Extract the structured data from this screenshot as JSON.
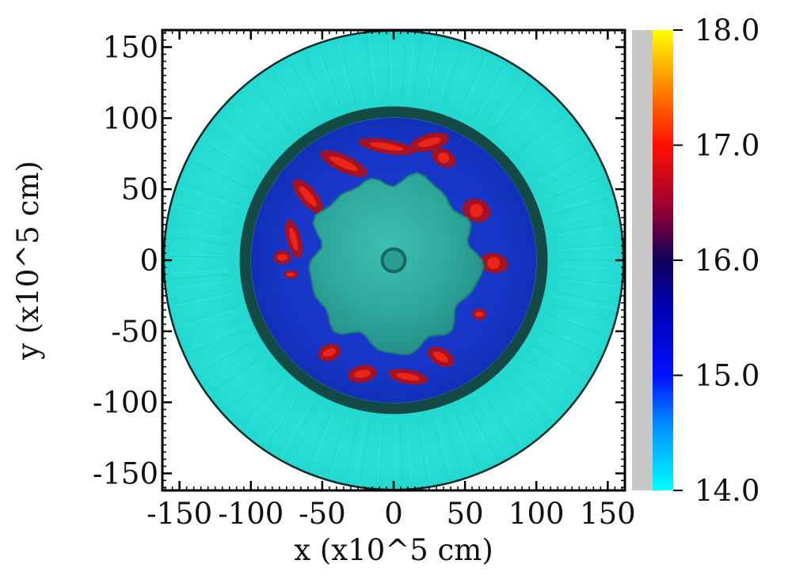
{
  "chart_data": {
    "type": "heatmap",
    "title": "",
    "xlabel": "x (x10^5 cm)",
    "ylabel": "y (x10^5 cm)",
    "xlim": [
      -162,
      162
    ],
    "ylim": [
      -162,
      162
    ],
    "x_ticks": [
      -150,
      -100,
      -50,
      0,
      50,
      100,
      150
    ],
    "y_ticks": [
      150,
      100,
      50,
      0,
      -50,
      -100,
      -150
    ],
    "x_tick_labels": [
      "-150",
      "-100",
      "-50",
      "0",
      "50",
      "100",
      "150"
    ],
    "y_tick_labels": [
      "150",
      "100",
      "50",
      "0",
      "-50",
      "-100",
      "-150"
    ],
    "colorbar": {
      "range": [
        14.0,
        18.0
      ],
      "ticks": [
        18.0,
        17.0,
        16.0,
        15.0,
        14.0
      ],
      "tick_labels": [
        "18.0",
        "17.0",
        "16.0",
        "15.0",
        "14.0"
      ],
      "colors": [
        "#00ffff",
        "#0080ff",
        "#0000ff",
        "#000080",
        "#800040",
        "#ff0000",
        "#ff8000",
        "#ffff00"
      ]
    },
    "regions": {
      "outer_shell_radius": 162,
      "inner_shell_radius": 107,
      "bubble_radius": 58,
      "core_radius": 8,
      "outer_shell_value": 14.1,
      "inner_region_value": 15.3,
      "plume_value": 16.8
    },
    "grid": false,
    "legend": "none"
  },
  "colors": {
    "outer_shell": "#21dcd2",
    "inner_region": "#1535c4",
    "bubble": "#2aa89b",
    "shell_boundary": "#144a45",
    "colorbar_gray": "#c8c8c8"
  }
}
